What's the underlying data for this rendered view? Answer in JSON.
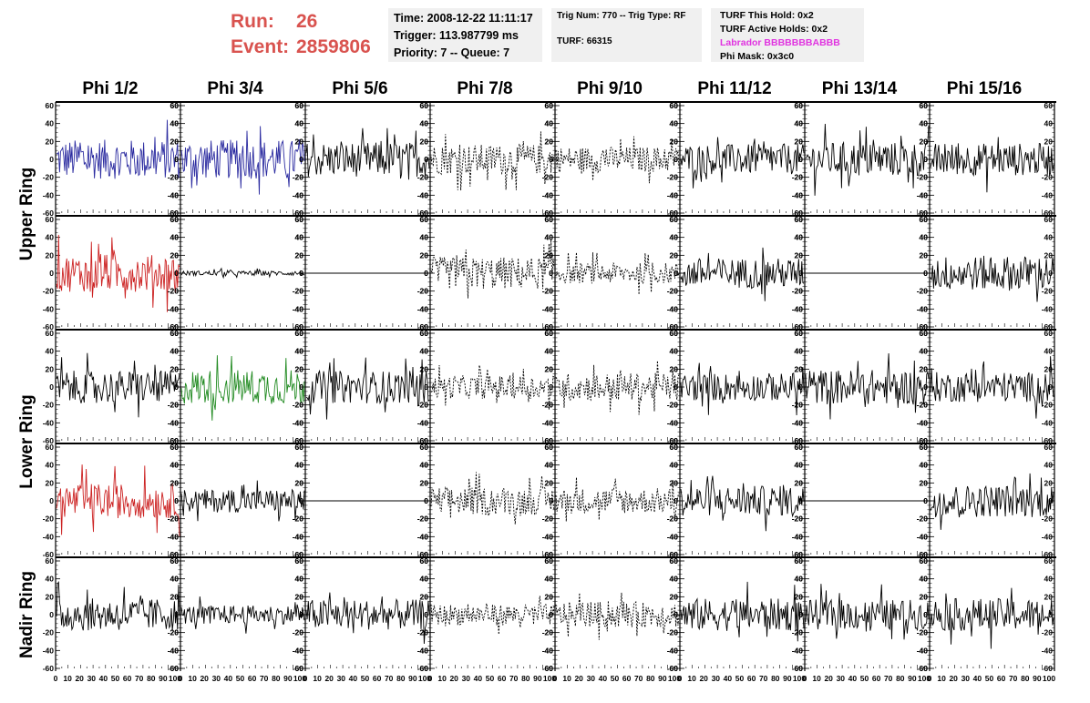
{
  "header": {
    "run_label": "Run:",
    "run_value": "26",
    "event_label": "Event:",
    "event_value": "2859806"
  },
  "info_time": {
    "time": "Time: 2008-12-22 11:11:17",
    "trigger": "Trigger: 113.987799 ms",
    "priority": "Priority: 7 -- Queue: 7"
  },
  "info_trig": {
    "trig": "Trig Num: 770 -- Trig Type: RF",
    "turf": "TURF: 66315"
  },
  "info_turf": {
    "this_hold": "TURF This Hold: 0x2",
    "active_holds": "TURF Active Holds: 0x2",
    "labrador": "Labrador BBBBBBBABBB",
    "phi_mask": "Phi Mask: 0x3c0"
  },
  "columns": [
    "Phi 1/2",
    "Phi 3/4",
    "Phi 5/6",
    "Phi 7/8",
    "Phi 9/10",
    "Phi 11/12",
    "Phi 13/14",
    "Phi 15/16"
  ],
  "ring_labels": [
    "Upper Ring",
    "Lower Ring",
    "Nadir Ring"
  ],
  "colors": {
    "run_text": "#d9534f",
    "labrador": "#e033e0",
    "blue": "#2b2ba0",
    "red": "#cc2222",
    "green": "#228b22",
    "black": "#000000"
  },
  "chart_data": {
    "type": "line",
    "x_ticks": [
      "0",
      "10",
      "20",
      "30",
      "40",
      "50",
      "60",
      "70",
      "80",
      "90",
      "100"
    ],
    "y_ticks": [
      "60",
      "40",
      "20",
      "0",
      "-20",
      "-40",
      "-60"
    ],
    "xlim": [
      0,
      100
    ],
    "ylim": [
      -60,
      60
    ],
    "grid": false,
    "panels": [
      [
        "blue:solid:17",
        "blue:solid:17",
        "black:solid:15",
        "black:dash:13",
        "black:dash:11",
        "black:solid:13",
        "black:solid:15",
        "black:solid:14"
      ],
      [
        "red:solid:16",
        "black:solid:2",
        "black:flat:0",
        "black:dash:14",
        "black:dash:9",
        "black:solid:13",
        "black:flat:0",
        "black:solid:15"
      ],
      [
        "black:solid:14",
        "green:solid:15",
        "black:solid:14",
        "black:dash:10",
        "black:dash:12",
        "black:solid:12",
        "black:solid:15",
        "black:solid:13"
      ],
      [
        "red:solid:15",
        "black:solid:10",
        "black:flat:0",
        "black:dash:12",
        "black:dash:11",
        "black:solid:13",
        "black:flat:0",
        "black:solid:14"
      ],
      [
        "black:solid:14",
        "black:solid:8",
        "black:solid:13",
        "black:dash:9",
        "black:dash:11",
        "black:solid:14",
        "black:solid:13",
        "black:solid:14"
      ]
    ]
  }
}
